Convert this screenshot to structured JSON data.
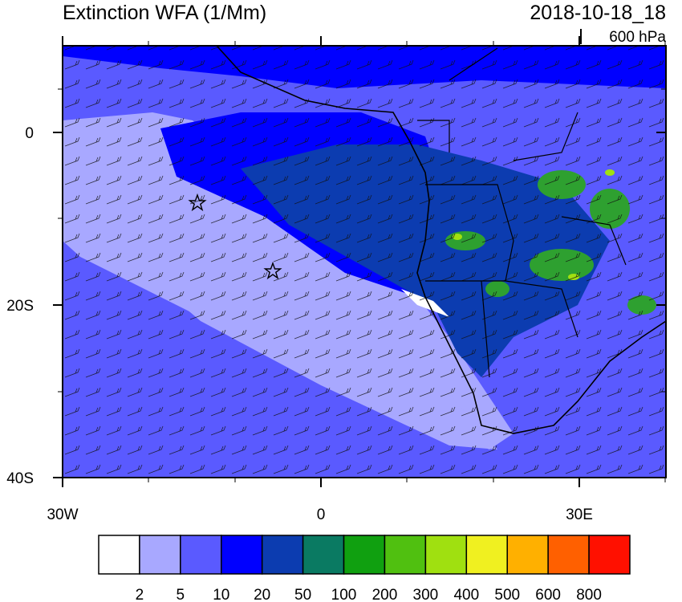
{
  "header": {
    "title": "Extinction WFA (1/Mm)",
    "date": "2018-10-18_18",
    "level": "600 hPa"
  },
  "map": {
    "y_labels": [
      "0",
      "20S",
      "40S"
    ],
    "x_labels": [
      "30W",
      "0",
      "30E"
    ]
  },
  "colorbar": {
    "colors": [
      "#ffffff",
      "#a8a8ff",
      "#5a5aff",
      "#0000ff",
      "#0c3cb0",
      "#0a7a62",
      "#10a010",
      "#50c010",
      "#a0e010",
      "#f0f020",
      "#ffb000",
      "#ff6000",
      "#ff1000"
    ],
    "labels": [
      2,
      5,
      10,
      20,
      50,
      100,
      200,
      300,
      400,
      500,
      600,
      800
    ]
  }
}
